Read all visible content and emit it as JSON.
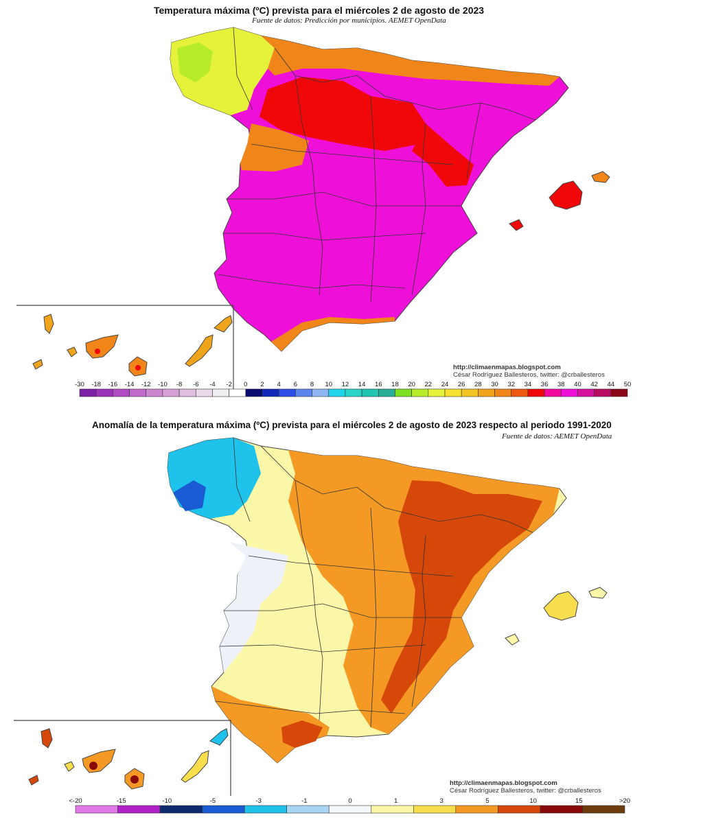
{
  "map1": {
    "title": "Temperatura máxima (ºC) prevista para el miércoles 2 de agosto de 2023",
    "subtitle": "Fuente de datos: Predicción por municipios. AEMET OpenData",
    "credit_url": "http://climaenmapas.blogspot.com",
    "credit_author": "César Rodríguez Ballesteros, twitter: @crballesteros",
    "legend": {
      "ticks": [
        "-30",
        "-18",
        "-16",
        "-14",
        "-12",
        "-10",
        "-8",
        "-6",
        "-4",
        "-2",
        "0",
        "2",
        "4",
        "6",
        "8",
        "10",
        "12",
        "14",
        "16",
        "18",
        "20",
        "22",
        "24",
        "26",
        "28",
        "30",
        "32",
        "34",
        "36",
        "38",
        "40",
        "42",
        "44",
        "50"
      ],
      "colors": [
        "#7d1fa5",
        "#9a33b8",
        "#b04cc2",
        "#c06acb",
        "#cc86d0",
        "#d6a2d6",
        "#dfbfdf",
        "#e8d8e8",
        "#f1eef1",
        "#ffffff",
        "#0a0a6e",
        "#1228b8",
        "#2b4fe6",
        "#5a86ee",
        "#8fb4f2",
        "#22d6ea",
        "#26d4c8",
        "#22c4b2",
        "#26ae98",
        "#7ee020",
        "#b6ec2a",
        "#e6f23a",
        "#f5e02e",
        "#f2c424",
        "#f0a41c",
        "#f0861a",
        "#ee5a12",
        "#f00808",
        "#f2089e",
        "#ee10d8",
        "#d4109c",
        "#b80a60",
        "#8c0618"
      ]
    }
  },
  "map2": {
    "title": "Anomalía de la temperatura máxima (ºC) prevista para el miércoles 2 de agosto de 2023 respecto al periodo 1991-2020",
    "subtitle": "Fuente de datos: AEMET OpenData",
    "credit_url": "http://climaenmapas.blogspot.com",
    "credit_author": "César Rodríguez Ballesteros, twitter: @crballesteros",
    "legend": {
      "ticks": [
        "<-20",
        "-15",
        "-10",
        "-5",
        "-3",
        "-1",
        "0",
        "1",
        "3",
        "5",
        "10",
        "15",
        ">20"
      ],
      "colors": [
        "#e07ae8",
        "#b022c8",
        "#0d2a6e",
        "#1a5ad2",
        "#1ec2ea",
        "#a8d6f2",
        "#f4f7fb",
        "#fbf7a8",
        "#f8de4c",
        "#f49a24",
        "#d6480a",
        "#8a0a0a",
        "#6e3c0c"
      ]
    }
  },
  "colors": {
    "magenta": "#ee10d8",
    "red": "#f00808",
    "orange": "#f0861a",
    "yellow": "#e6f23a",
    "lime": "#b6ec2a",
    "anom_yellow": "#fbf7a8",
    "anom_orange": "#f49a24",
    "anom_dark": "#d6480a",
    "anom_blue": "#1ec2ea",
    "anom_white": "#eef2f8"
  }
}
